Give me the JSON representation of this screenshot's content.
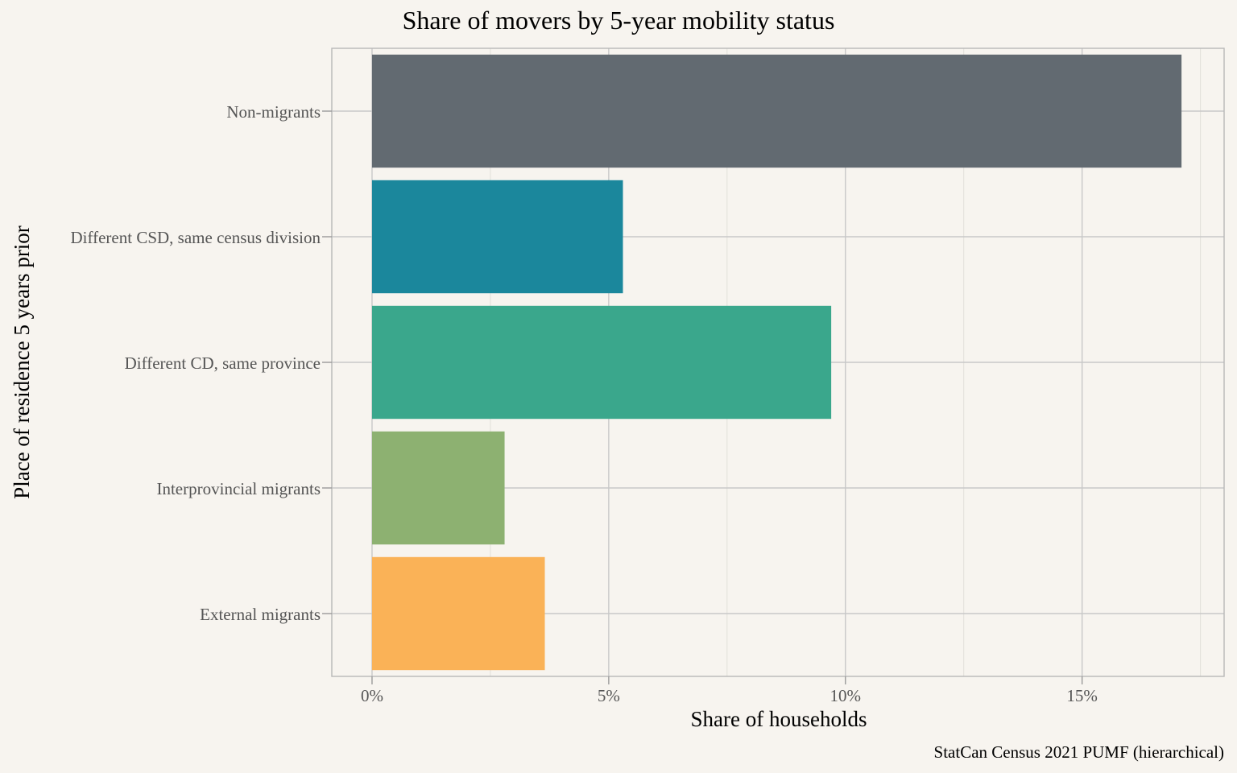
{
  "chart_data": {
    "type": "bar",
    "orientation": "horizontal",
    "title": "Share of movers by 5-year mobility status",
    "xlabel": "Share of households",
    "ylabel": "Place of residence 5 years prior",
    "caption": "StatCan Census 2021 PUMF (hierarchical)",
    "categories": [
      "Non-migrants",
      "Different CSD, same census division",
      "Different CD, same province",
      "Interprovincial migrants",
      "External migrants"
    ],
    "values": [
      17.1,
      5.3,
      9.7,
      2.8,
      3.65
    ],
    "colors": [
      "#626a71",
      "#1b879c",
      "#3aa78c",
      "#8db171",
      "#fab257"
    ],
    "xlim": [
      -0.85,
      18.0
    ],
    "x_ticks": [
      0,
      5,
      10,
      15
    ],
    "x_tick_labels": [
      "0%",
      "5%",
      "10%",
      "15%"
    ],
    "grid": true,
    "legend": "none"
  }
}
